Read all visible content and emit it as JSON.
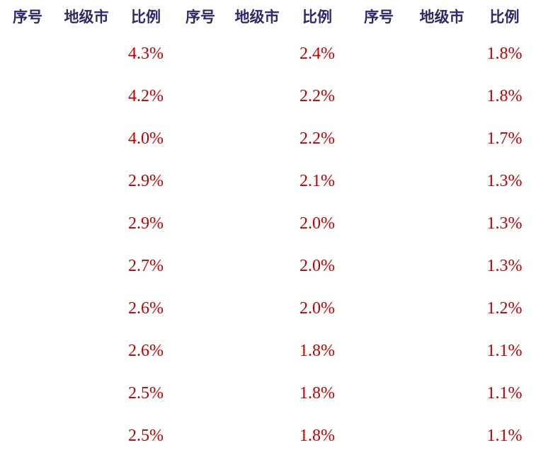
{
  "table": {
    "headers": [
      "序号",
      "地级市",
      "比例"
    ],
    "colors": {
      "header_text": "#2b2b6b",
      "ratio_text": "#c00000",
      "background": "#ffffff"
    },
    "rows": [
      {
        "g1": "4.3%",
        "g2": "2.4%",
        "g3": "1.8%"
      },
      {
        "g1": "4.2%",
        "g2": "2.2%",
        "g3": "1.8%"
      },
      {
        "g1": "4.0%",
        "g2": "2.2%",
        "g3": "1.7%"
      },
      {
        "g1": "2.9%",
        "g2": "2.1%",
        "g3": "1.3%"
      },
      {
        "g1": "2.9%",
        "g2": "2.0%",
        "g3": "1.3%"
      },
      {
        "g1": "2.7%",
        "g2": "2.0%",
        "g3": "1.3%"
      },
      {
        "g1": "2.6%",
        "g2": "2.0%",
        "g3": "1.2%"
      },
      {
        "g1": "2.6%",
        "g2": "1.8%",
        "g3": "1.1%"
      },
      {
        "g1": "2.5%",
        "g2": "1.8%",
        "g3": "1.1%"
      },
      {
        "g1": "2.5%",
        "g2": "1.8%",
        "g3": "1.1%"
      }
    ]
  }
}
